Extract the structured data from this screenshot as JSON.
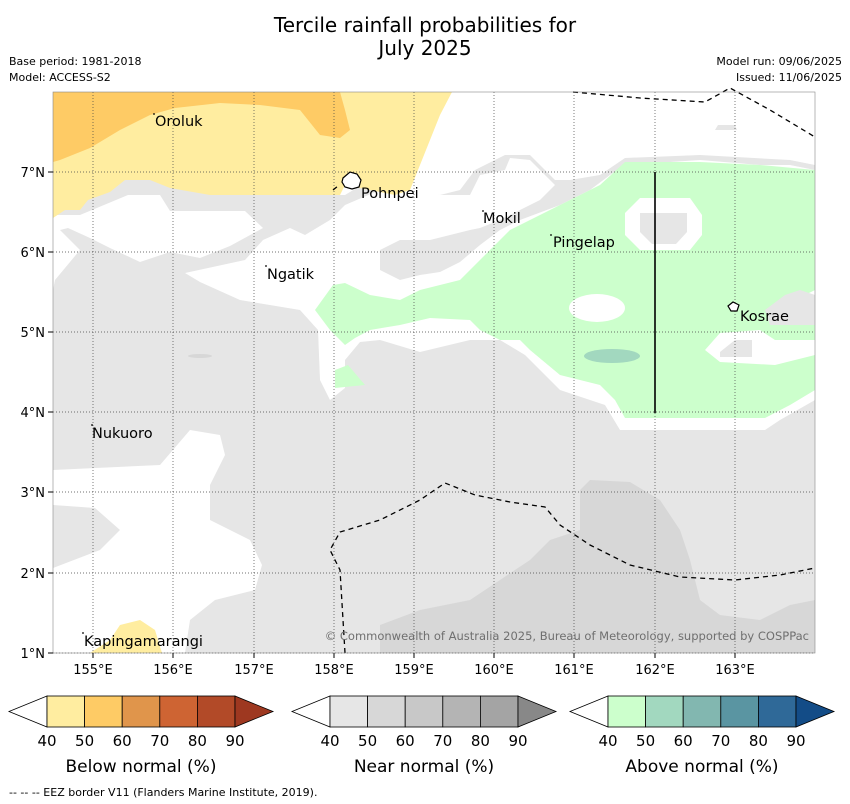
{
  "title_line1": "Tercile rainfall probabilities for",
  "title_line2": "July 2025",
  "base_period": "Base period: 1981-2018",
  "model": "Model: ACCESS-S2",
  "model_run": "Model run: 09/06/2025",
  "issued": "Issued: 11/06/2025",
  "copyright": "© Commonwealth of Australia 2025, Bureau of Meteorology, supported by COSPPac",
  "eez_note": "--  --  -- EEZ border V11 (Flanders Marine Institute, 2019).",
  "lon_ticks": [
    "155°E",
    "156°E",
    "157°E",
    "158°E",
    "159°E",
    "160°E",
    "161°E",
    "162°E",
    "163°E"
  ],
  "lat_ticks": [
    "7°N",
    "6°N",
    "5°N",
    "4°N",
    "3°N",
    "2°N",
    "1°N"
  ],
  "islands": [
    {
      "name": "Oroluk"
    },
    {
      "name": "Pohnpei"
    },
    {
      "name": "Mokil"
    },
    {
      "name": "Pingelap"
    },
    {
      "name": "Ngatik"
    },
    {
      "name": "Kosrae"
    },
    {
      "name": "Nukuoro"
    },
    {
      "name": "Kapingamarangi"
    }
  ],
  "colorbars": [
    {
      "title": "Below normal (%)",
      "ticks": [
        "40",
        "50",
        "60",
        "70",
        "80",
        "90"
      ],
      "colors": [
        "#ffeda0",
        "#fecb65",
        "#e0954b",
        "#ce6433",
        "#b24a28",
        "#9e3820"
      ]
    },
    {
      "title": "Near normal (%)",
      "ticks": [
        "40",
        "50",
        "60",
        "70",
        "80",
        "90"
      ],
      "colors": [
        "#e6e6e6",
        "#d7d7d7",
        "#c8c8c8",
        "#b4b4b4",
        "#a4a4a4",
        "#888888"
      ]
    },
    {
      "title": "Above normal (%)",
      "ticks": [
        "40",
        "50",
        "60",
        "70",
        "80",
        "90"
      ],
      "colors": [
        "#ccffcc",
        "#a2d8bf",
        "#82b7b0",
        "#5a95a2",
        "#2f6998",
        "#134c87"
      ]
    }
  ],
  "colors": {
    "below_40": "#ffeda0",
    "below_50": "#fecb65",
    "near_40": "#e6e6e6",
    "near_50": "#d7d7d7",
    "above_40": "#ccffcc",
    "above_50": "#a2d8bf"
  }
}
